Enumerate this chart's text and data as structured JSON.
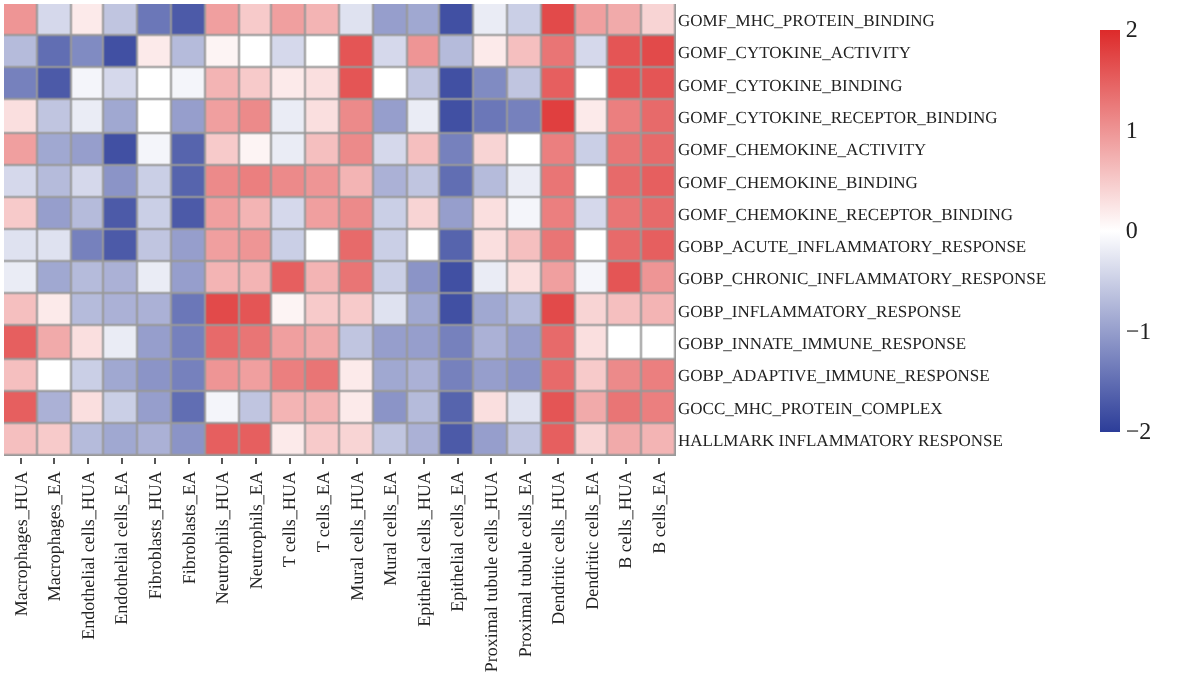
{
  "chart_data": {
    "type": "heatmap",
    "categories": [
      "Macrophages_HUA",
      "Macrophages_EA",
      "Endothelial cells_HUA",
      "Endothelial cells_EA",
      "Fibroblasts_HUA",
      "Fibroblasts_EA",
      "Neutrophils_HUA",
      "Neutrophils_EA",
      "T cells_HUA",
      "T cells_EA",
      "Mural cells_HUA",
      "Mural cells_EA",
      "Epithelial cells_HUA",
      "Epithelial cells_EA",
      "Proximal tubule cells_HUA",
      "Proximal tubule cells_EA",
      "Dendritic cells_HUA",
      "Dendritic cells_EA",
      "B cells_HUA",
      "B cells_EA"
    ],
    "y_categories": [
      "GOMF_MHC_PROTEIN_BINDING",
      "GOMF_CYTOKINE_ACTIVITY",
      "GOMF_CYTOKINE_BINDING",
      "GOMF_CYTOKINE_RECEPTOR_BINDING",
      "GOMF_CHEMOKINE_ACTIVITY",
      "GOMF_CHEMOKINE_BINDING",
      "GOMF_CHEMOKINE_RECEPTOR_BINDING",
      "GOBP_ACUTE_INFLAMMATORY_RESPONSE",
      "GOBP_CHRONIC_INFLAMMATORY_RESPONSE",
      "GOBP_INFLAMMATORY_RESPONSE",
      "GOBP_INNATE_IMMUNE_RESPONSE",
      "GOBP_ADAPTIVE_IMMUNE_RESPONSE",
      "GOCC_MHC_PROTEIN_COMPLEX",
      "HALLMARK INFLAMMATORY RESPONSE"
    ],
    "cells": [
      [
        1.0,
        -0.4,
        0.2,
        -0.6,
        -1.4,
        -1.7,
        0.9,
        0.5,
        0.9,
        0.7,
        -0.3,
        -1.0,
        -0.9,
        -1.8,
        -0.2,
        -0.5,
        1.7,
        0.9,
        0.8,
        0.4
      ],
      [
        -0.7,
        -1.5,
        -1.2,
        -1.8,
        0.2,
        -0.7,
        0.1,
        0.0,
        -0.4,
        0.0,
        1.6,
        -0.4,
        1.0,
        -0.7,
        0.2,
        0.6,
        1.3,
        -0.4,
        1.6,
        1.7
      ],
      [
        -1.3,
        -1.7,
        -0.1,
        -0.4,
        0.0,
        -0.1,
        0.7,
        0.5,
        0.2,
        0.3,
        1.6,
        0.0,
        -0.6,
        -1.8,
        -1.2,
        -0.6,
        1.5,
        0.0,
        1.6,
        1.6
      ],
      [
        0.3,
        -0.6,
        -0.2,
        -0.9,
        0.0,
        -1.0,
        0.9,
        1.1,
        -0.2,
        0.3,
        1.1,
        -1.0,
        -0.2,
        -1.8,
        -1.4,
        -1.3,
        1.8,
        0.2,
        1.2,
        1.4
      ],
      [
        0.9,
        -0.9,
        -1.0,
        -1.8,
        -0.1,
        -1.6,
        0.5,
        0.1,
        -0.2,
        0.6,
        1.1,
        -0.4,
        0.6,
        -1.3,
        0.4,
        0.0,
        1.2,
        -0.5,
        1.3,
        1.4
      ],
      [
        -0.4,
        -0.7,
        -0.4,
        -1.1,
        -0.5,
        -1.6,
        1.1,
        1.2,
        1.1,
        1.0,
        0.7,
        -0.8,
        -0.6,
        -1.5,
        -0.7,
        -0.2,
        1.3,
        0.0,
        1.4,
        1.5
      ],
      [
        0.5,
        -1.0,
        -0.7,
        -1.7,
        -0.5,
        -1.7,
        0.9,
        0.7,
        -0.4,
        0.9,
        1.1,
        -0.5,
        0.4,
        -1.0,
        0.3,
        -0.1,
        1.2,
        -0.4,
        1.3,
        1.4
      ],
      [
        -0.3,
        -0.3,
        -1.3,
        -1.7,
        -0.6,
        -1.0,
        0.9,
        1.0,
        -0.5,
        0.0,
        1.4,
        -0.5,
        0.0,
        -1.6,
        0.3,
        0.6,
        1.3,
        0.0,
        1.4,
        1.5
      ],
      [
        -0.2,
        -0.9,
        -0.7,
        -0.8,
        -0.2,
        -1.0,
        0.7,
        0.7,
        1.5,
        0.7,
        1.3,
        -0.5,
        -1.1,
        -1.8,
        -0.2,
        0.3,
        0.9,
        -0.1,
        1.6,
        1.0
      ],
      [
        0.6,
        0.2,
        -0.7,
        -0.8,
        -0.8,
        -1.4,
        1.7,
        1.6,
        0.1,
        0.5,
        0.5,
        -0.3,
        -0.9,
        -1.8,
        -0.9,
        -0.7,
        1.7,
        0.4,
        0.6,
        0.7
      ],
      [
        1.5,
        0.8,
        0.3,
        -0.2,
        -1.0,
        -1.3,
        1.4,
        1.3,
        0.9,
        0.8,
        -0.6,
        -1.0,
        -1.0,
        -1.3,
        -0.8,
        -1.0,
        1.4,
        0.3,
        0.0,
        0.0
      ],
      [
        0.6,
        0.0,
        -0.5,
        -0.9,
        -1.1,
        -1.3,
        1.0,
        0.9,
        1.2,
        1.3,
        0.2,
        -0.9,
        -0.8,
        -1.3,
        -1.0,
        -1.1,
        1.4,
        0.5,
        1.1,
        1.2
      ],
      [
        1.5,
        -0.8,
        0.3,
        -0.5,
        -1.0,
        -1.5,
        -0.1,
        -0.6,
        0.7,
        0.7,
        0.2,
        -1.1,
        -0.7,
        -1.6,
        0.3,
        -0.3,
        1.6,
        0.8,
        1.3,
        1.2
      ],
      [
        0.6,
        0.5,
        -0.7,
        -0.9,
        -0.8,
        -1.1,
        1.5,
        1.5,
        0.2,
        0.5,
        0.4,
        -0.6,
        -0.8,
        -1.7,
        -1.0,
        -0.6,
        1.5,
        0.4,
        0.8,
        0.7
      ]
    ],
    "clim": [
      -2,
      2
    ],
    "cticks": [
      -2,
      -1,
      0,
      1,
      2
    ],
    "colors": [
      "#2c3d99",
      "#ffffff",
      "#dd2a2a"
    ]
  }
}
